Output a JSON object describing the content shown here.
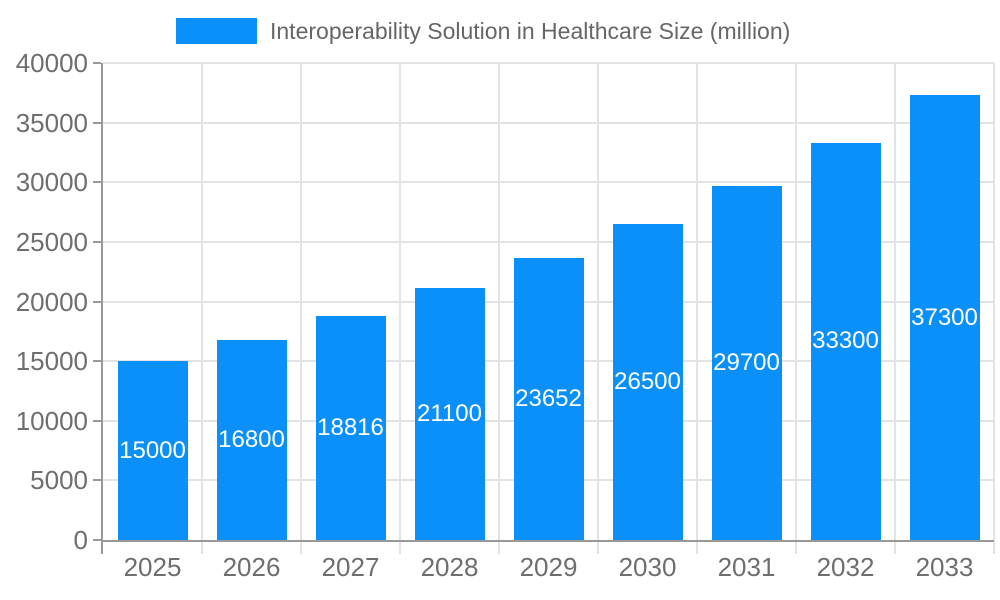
{
  "chart_data": {
    "type": "bar",
    "title": "Interoperability Solution in Healthcare Size (million)",
    "series_name": "Interoperability Solution in Healthcare Size (million)",
    "categories": [
      "2025",
      "2026",
      "2027",
      "2028",
      "2029",
      "2030",
      "2031",
      "2032",
      "2033"
    ],
    "values": [
      15000,
      16800,
      18816,
      21100,
      23652,
      26500,
      29700,
      33300,
      37300
    ],
    "data_labels": [
      "15000",
      "16800",
      "18816",
      "21100",
      "23652",
      "26500",
      "29700",
      "33300",
      "37300"
    ],
    "xlabel": "",
    "ylabel": "",
    "ylim": [
      0,
      40000
    ],
    "yticks": [
      0,
      5000,
      10000,
      15000,
      20000,
      25000,
      30000,
      35000,
      40000
    ],
    "ytick_labels": [
      "0",
      "5000",
      "10000",
      "15000",
      "20000",
      "25000",
      "30000",
      "35000",
      "40000"
    ],
    "grid": true,
    "legend_position": "top-center",
    "label_position": "inside-center",
    "colors": {
      "bar": "#0a90f8",
      "grid": "#e3e3e3",
      "axis": "#999999",
      "tick_label": "#6e6e6e",
      "legend_text": "#666666",
      "data_label": "#ffffff",
      "background": "#ffffff"
    }
  }
}
